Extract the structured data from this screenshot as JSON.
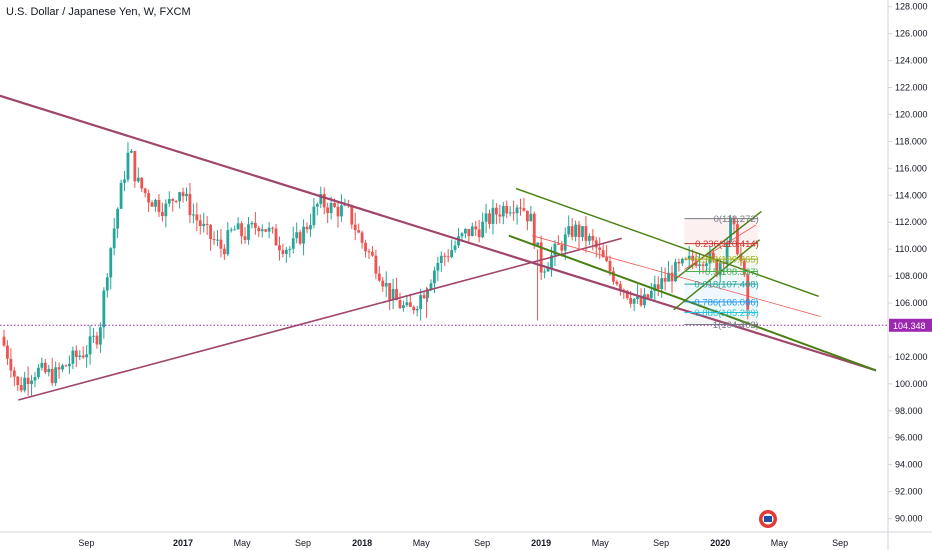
{
  "header": {
    "title": "U.S. Dollar / Japanese Yen, W, FXCM"
  },
  "colors": {
    "up": "#26a69a",
    "down": "#ef5350",
    "trendline": "#a0456b",
    "channel": "#4a7f12",
    "price_line": "#9c27b0",
    "axis_text": "#131722",
    "grid": "#d1d4dc"
  },
  "chart_data": {
    "type": "candlestick",
    "title": "U.S. Dollar / Japanese Yen, W, FXCM",
    "ylim": [
      89,
      128.5
    ],
    "y_ticks": [
      "90.000",
      "92.000",
      "94.000",
      "96.000",
      "98.000",
      "100.000",
      "102.000",
      "104.000",
      "106.000",
      "108.000",
      "110.000",
      "112.000",
      "114.000",
      "116.000",
      "118.000",
      "120.000",
      "122.000",
      "124.000",
      "126.000",
      "128.000"
    ],
    "x_ticks": [
      {
        "label": "Sep",
        "t": 0.46,
        "bold": false
      },
      {
        "label": "2017",
        "t": 1.0,
        "bold": true
      },
      {
        "label": "May",
        "t": 1.33,
        "bold": false
      },
      {
        "label": "Sep",
        "t": 1.67,
        "bold": false
      },
      {
        "label": "2018",
        "t": 2.0,
        "bold": true
      },
      {
        "label": "May",
        "t": 2.33,
        "bold": false
      },
      {
        "label": "Sep",
        "t": 2.67,
        "bold": false
      },
      {
        "label": "2019",
        "t": 3.0,
        "bold": true
      },
      {
        "label": "May",
        "t": 3.33,
        "bold": false
      },
      {
        "label": "Sep",
        "t": 3.67,
        "bold": false
      },
      {
        "label": "2020",
        "t": 4.0,
        "bold": true
      },
      {
        "label": "May",
        "t": 4.33,
        "bold": false
      },
      {
        "label": "Sep",
        "t": 4.67,
        "bold": false
      }
    ],
    "x_range": [
      0.0,
      4.87
    ],
    "anchors": [
      [
        0.0,
        103.5
      ],
      [
        0.06,
        101.5
      ],
      [
        0.1,
        99.5
      ],
      [
        0.14,
        100.5
      ],
      [
        0.2,
        101.0
      ],
      [
        0.3,
        100.6
      ],
      [
        0.4,
        101.8
      ],
      [
        0.48,
        102.5
      ],
      [
        0.55,
        103.8
      ],
      [
        0.6,
        109.0
      ],
      [
        0.66,
        113.5
      ],
      [
        0.72,
        117.5
      ],
      [
        0.76,
        115.0
      ],
      [
        0.83,
        113.8
      ],
      [
        0.92,
        113.0
      ],
      [
        1.0,
        114.5
      ],
      [
        1.08,
        112.5
      ],
      [
        1.16,
        111.0
      ],
      [
        1.24,
        110.0
      ],
      [
        1.3,
        111.5
      ],
      [
        1.36,
        111.0
      ],
      [
        1.45,
        112.0
      ],
      [
        1.55,
        110.5
      ],
      [
        1.62,
        110.0
      ],
      [
        1.7,
        111.5
      ],
      [
        1.78,
        113.5
      ],
      [
        1.86,
        113.0
      ],
      [
        1.94,
        112.8
      ],
      [
        2.02,
        110.5
      ],
      [
        2.1,
        108.8
      ],
      [
        2.18,
        106.5
      ],
      [
        2.28,
        105.3
      ],
      [
        2.36,
        106.8
      ],
      [
        2.44,
        109.0
      ],
      [
        2.52,
        110.0
      ],
      [
        2.6,
        111.2
      ],
      [
        2.68,
        111.6
      ],
      [
        2.75,
        112.5
      ],
      [
        2.82,
        113.2
      ],
      [
        2.9,
        113.5
      ],
      [
        2.96,
        112.2
      ],
      [
        3.02,
        108.6
      ],
      [
        3.08,
        109.5
      ],
      [
        3.14,
        110.5
      ],
      [
        3.2,
        111.5
      ],
      [
        3.26,
        111.0
      ],
      [
        3.32,
        110.2
      ],
      [
        3.38,
        108.8
      ],
      [
        3.44,
        107.8
      ],
      [
        3.52,
        106.5
      ],
      [
        3.58,
        105.8
      ],
      [
        3.64,
        106.8
      ],
      [
        3.7,
        107.6
      ],
      [
        3.76,
        108.3
      ],
      [
        3.82,
        108.8
      ],
      [
        3.88,
        109.3
      ],
      [
        3.94,
        109.5
      ],
      [
        4.0,
        108.6
      ],
      [
        4.04,
        109.7
      ],
      [
        4.08,
        112.0
      ],
      [
        4.12,
        110.0
      ],
      [
        4.15,
        108.0
      ],
      [
        4.17,
        105.5
      ]
    ],
    "price_line": {
      "value": 104.348,
      "label": "104.348"
    },
    "trendlines": [
      {
        "name": "upper-triangle-line",
        "from": [
          -0.05,
          121.5
        ],
        "to": [
          4.87,
          101.0
        ],
        "color": "trendline",
        "width": 2.2
      },
      {
        "name": "lower-triangle-line",
        "from": [
          0.08,
          98.8
        ],
        "to": [
          3.45,
          110.8
        ],
        "color": "trendline",
        "width": 1.6
      }
    ],
    "channel_lines": [
      {
        "name": "channel-upper-line",
        "from": [
          2.86,
          114.5
        ],
        "to": [
          4.55,
          106.5
        ],
        "width": 1.4
      },
      {
        "name": "channel-lower-line",
        "from": [
          2.82,
          111.0
        ],
        "to": [
          4.87,
          101.0
        ],
        "width": 2.0
      },
      {
        "name": "rising-channel-upper",
        "from": [
          3.75,
          107.8
        ],
        "to": [
          4.23,
          112.8
        ],
        "width": 1.4
      },
      {
        "name": "rising-channel-lower",
        "from": [
          3.74,
          105.5
        ],
        "to": [
          4.22,
          110.7
        ],
        "width": 1.4
      }
    ],
    "thin_lines": [
      {
        "from": [
          2.95,
          111.0
        ],
        "to": [
          4.56,
          105.0
        ],
        "color": "#ef5350"
      },
      {
        "from": [
          3.8,
          108.5
        ],
        "to": [
          4.2,
          111.8
        ],
        "color": "#ef5350"
      }
    ],
    "fibonacci": {
      "x_start": 3.8,
      "x_end": 4.21,
      "levels": [
        {
          "ratio": "0",
          "price": 112.272,
          "label": "0(112.272)",
          "color": "#787b86"
        },
        {
          "ratio": "0.236",
          "price": 110.414,
          "label": "0.236(110.414)",
          "color": "#d32f2f"
        },
        {
          "ratio": "0.382",
          "price": 109.265,
          "label": "0.382(109.265)",
          "color": "#9fb01f"
        },
        {
          "ratio": "0.5",
          "price": 108.337,
          "label": "0.5(108.337)",
          "color": "#4caf50"
        },
        {
          "ratio": "0.618",
          "price": 107.408,
          "label": "0.618(107.408)",
          "color": "#26a69a"
        },
        {
          "ratio": "0.786",
          "price": 106.086,
          "label": "0.786(106.086)",
          "color": "#2196f3"
        },
        {
          "ratio": "0.886",
          "price": 105.299,
          "label": "0.886(105.299)",
          "color": "#26c6da"
        },
        {
          "ratio": "1",
          "price": 104.402,
          "label": "1(104.402)",
          "color": "#787b86"
        }
      ]
    }
  }
}
